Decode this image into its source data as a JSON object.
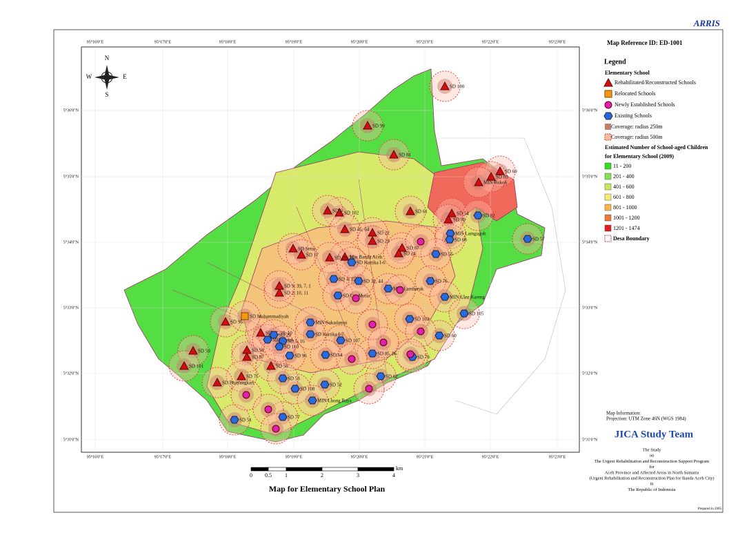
{
  "header": {
    "brand": "ARRIS",
    "reference": "Map Reference ID: ED-1001"
  },
  "map": {
    "title": "Map for Elementary School Plan",
    "longitudes": [
      "95°16'0\"E",
      "95°17'0\"E",
      "95°18'0\"E",
      "95°19'0\"E",
      "95°20'0\"E",
      "95°21'0\"E",
      "95°22'0\"E",
      "95°23'0\"E"
    ],
    "latitudes": [
      "5°36'0\"N",
      "5°35'0\"N",
      "5°34'0\"N",
      "5°33'0\"N",
      "5°32'0\"N",
      "5°31'0\"N"
    ],
    "compass": [
      "N",
      "E",
      "S",
      "W"
    ],
    "scale": {
      "ticks": [
        "0",
        "0.5",
        "1",
        "2",
        "3",
        "4"
      ],
      "unit": "km"
    },
    "schools": {
      "rehabilitated": [
        "SD 100",
        "SD 99",
        "SD 81",
        "SD 69",
        "SD 83",
        "MIN Rukoh",
        "SD 61",
        "SD 54",
        "SD 80",
        "SD 102",
        "SD 6",
        "SD 45, 64",
        "SD 22",
        "SD 23",
        "SD 67",
        "SD 24",
        "Min Banda Aceh",
        "SD 20, 21",
        "SD Setui",
        "SD 17",
        "SD 95",
        "SD 59",
        "SD 101",
        "SD 94",
        "SD 87",
        "SD 31, 19, 10",
        "SD 50",
        "SD 75",
        "SD Bhayangkari",
        "SD 2, 10, 11",
        "SD 9, 39, 7, 1"
      ],
      "relocated": [
        "SD Muhammadiyah"
      ],
      "existing": [
        "SD 82",
        "SD 57",
        "MIS Lamgugob",
        "SD 68",
        "SD 55",
        "SD 76",
        "MIN Ulee Kareng",
        "SD 105",
        "SD 104",
        "SD 60",
        "SD 79",
        "SD 62",
        "SD 85, 86",
        "SD 107",
        "SD 64",
        "SD 96",
        "SD 108",
        "SD 52",
        "MIN Lhong Raya",
        "SD 77",
        "SD 51",
        "SD 53",
        "MIN Setui",
        "SD 29",
        "SD 5, 16",
        "SD 110",
        "SD 32, 44",
        "SD 4, 15",
        "SD Cut Mutia",
        "MIN Lambaruk",
        "MIN Sukadamai",
        "SD Kartika I-7",
        "SD Kartika I-6"
      ]
    }
  },
  "legend": {
    "title": "Legend",
    "school_heading": "Elementary School",
    "symbols": [
      "Rehabilitated/Reconstructed Schools",
      "Relocated Schools",
      "Newly Established Schools",
      "Existing Schools",
      "Coverage: radius 250m",
      "Coverage: radius 500m"
    ],
    "children_heading": [
      "Estimated Number of School-aged Children",
      "for Elementary School (2009)"
    ],
    "classes": [
      {
        "label": "11 - 200",
        "color": "#33dd22"
      },
      {
        "label": "201 - 400",
        "color": "#88e055"
      },
      {
        "label": "401 - 600",
        "color": "#c8e860"
      },
      {
        "label": "601 - 800",
        "color": "#f5ec78"
      },
      {
        "label": "801 - 1000",
        "color": "#f5b848"
      },
      {
        "label": "1001 - 1200",
        "color": "#ec7a38"
      },
      {
        "label": "1201 - 1474",
        "color": "#e02020"
      }
    ],
    "boundary": "Desa Boundary"
  },
  "info": {
    "lines": [
      "Map Information:",
      "Projection: UTM Zone 46N (WGS 1984)"
    ]
  },
  "credits": {
    "team": "JICA Study Team",
    "lines": [
      "The Study",
      "on",
      "The Urgent Rehabilitation and Reconstruction Support Program",
      "for",
      "Aceh Province and Affected Areas in North Sumatra",
      "(Urgent Rehabilitation and Reconstruction Plan for Banda Aceh City)",
      "in",
      "The Republic of Indonesia"
    ],
    "prepared": "Prepared in 2005"
  }
}
